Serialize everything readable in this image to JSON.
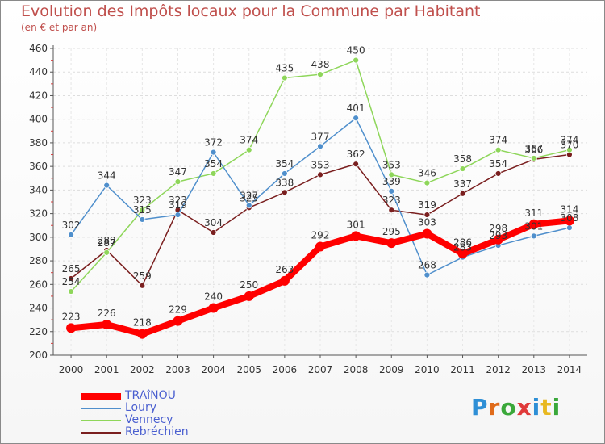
{
  "title": "Evolution des Impôts locaux pour la Commune par Habitant",
  "subtitle": "(en € et par an)",
  "logo": {
    "letters": [
      "P",
      "r",
      "o",
      "x",
      "i",
      "t",
      "i"
    ],
    "colors": [
      "#2e8fd6",
      "#e06b1a",
      "#3aa83a",
      "#e03a3a",
      "#2e8fd6",
      "#e8b820",
      "#3aa83a"
    ]
  },
  "chart_data": {
    "type": "line",
    "title": "Evolution des Impôts locaux pour la Commune par Habitant",
    "xlabel": "",
    "ylabel": "(en € et par an)",
    "ylim": [
      200,
      460
    ],
    "yticks": [
      200,
      220,
      240,
      260,
      280,
      300,
      320,
      340,
      360,
      380,
      400,
      420,
      440,
      460
    ],
    "x": [
      2000,
      2001,
      2002,
      2003,
      2004,
      2005,
      2006,
      2007,
      2008,
      2009,
      2010,
      2011,
      2012,
      2013,
      2014
    ],
    "legend_position": "bottom-left",
    "series": [
      {
        "name": "Rebréchien",
        "color": "#7a1f1f",
        "values": [
          265,
          289,
          259,
          323,
          304,
          325,
          338,
          353,
          362,
          323,
          319,
          337,
          354,
          366,
          370
        ]
      },
      {
        "name": "Vennecy",
        "color": "#8ed65a",
        "values": [
          254,
          287,
          323,
          347,
          354,
          374,
          435,
          438,
          450,
          353,
          346,
          358,
          374,
          367,
          374
        ]
      },
      {
        "name": "Loury",
        "color": "#4f8fcc",
        "values": [
          302,
          344,
          315,
          319,
          372,
          327,
          354,
          377,
          401,
          339,
          268,
          283,
          293,
          301,
          308
        ]
      },
      {
        "name": "TRAîNOU",
        "color": "#ff0000",
        "values": [
          223,
          226,
          218,
          229,
          240,
          250,
          263,
          292,
          301,
          295,
          303,
          286,
          298,
          311,
          314
        ]
      }
    ],
    "legend_order": [
      "TRAîNOU",
      "Loury",
      "Vennecy",
      "Rebréchien"
    ]
  }
}
